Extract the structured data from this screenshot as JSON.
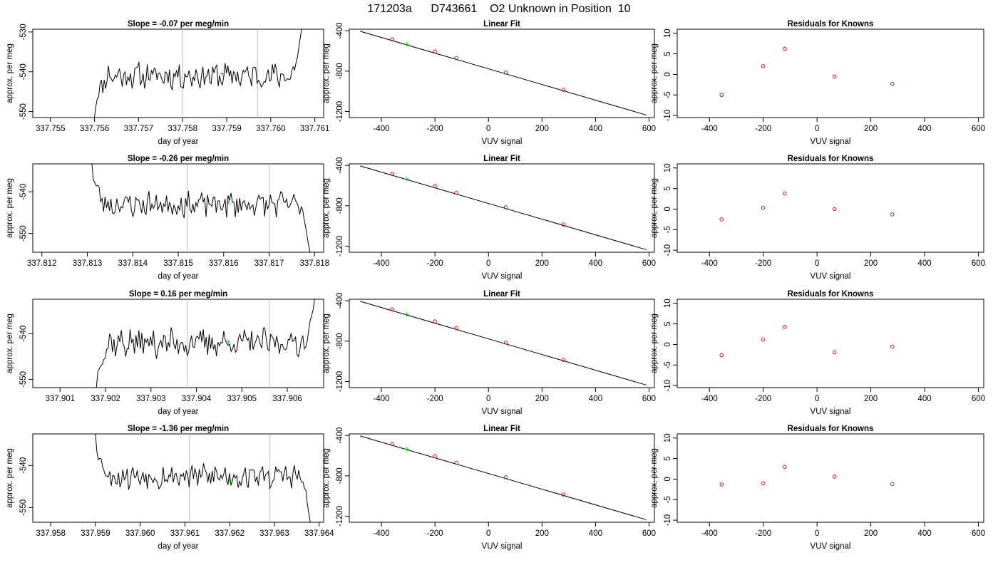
{
  "figure_title": "171203a      D743661    O2 Unknown in Position  10",
  "chart_data": [
    {
      "type": "line",
      "panel": "time-series",
      "row": 1,
      "title": "Slope =  -0.07  per meg/min",
      "xlabel": "day of year",
      "ylabel": "approx. per meg",
      "xlim": [
        337.7546,
        337.7612
      ],
      "ylim": [
        -551.5,
        -529.3
      ],
      "xticks": [
        "337.755",
        "337.756",
        "337.757",
        "337.758",
        "337.759",
        "337.760",
        "337.761"
      ],
      "yticks": [
        "-530",
        "-540",
        "-550"
      ],
      "vlines": [
        337.758,
        337.7597
      ],
      "highlight": {
        "x": 337.7589,
        "y": -540.5
      },
      "series": [
        {
          "x_start": 337.756,
          "x_end": 337.7607,
          "start": -551.5,
          "end": -529.3,
          "level": -541,
          "amp": 2.8,
          "seed": 11
        }
      ]
    },
    {
      "type": "scatter",
      "panel": "linear-fit",
      "row": 1,
      "title": "Linear Fit",
      "xlabel": "VUV signal",
      "ylabel": "approx. per meg",
      "xlim": [
        -520,
        620
      ],
      "ylim": [
        -1260,
        -385
      ],
      "xticks": [
        "-400",
        "-200",
        "0",
        "200",
        "400",
        "600"
      ],
      "yticks": [
        "-400",
        "-800",
        "-1200"
      ],
      "fit_line": {
        "x": [
          -480,
          590
        ],
        "y": [
          -405,
          -1235
        ]
      },
      "knowns": {
        "x": [
          -360,
          -200,
          -120,
          65,
          280
        ],
        "y": [
          -485,
          -605,
          -670,
          -815,
          -985
        ]
      },
      "unknown": {
        "x": -305,
        "y": -535
      }
    },
    {
      "type": "scatter",
      "panel": "residuals",
      "row": 1,
      "title": "Residuals for Knowns",
      "xlabel": "VUV signal",
      "ylabel": "approx. per meg",
      "xlim": [
        -520,
        620
      ],
      "ylim": [
        -10.5,
        11
      ],
      "xticks": [
        "-400",
        "-200",
        "0",
        "200",
        "400",
        "600"
      ],
      "yticks": [
        "10",
        "5",
        "0",
        "-5",
        "-10"
      ],
      "points": {
        "x": [
          -355,
          -200,
          -120,
          65,
          280
        ],
        "y": [
          -5.0,
          2.0,
          6.2,
          -0.5,
          -2.3
        ]
      }
    },
    {
      "type": "line",
      "panel": "time-series",
      "row": 2,
      "title": "Slope =  -0.26  per meg/min",
      "xlabel": "day of year",
      "ylabel": "approx. per meg",
      "xlim": [
        337.8118,
        337.8182
      ],
      "ylim": [
        -554.5,
        -533.3
      ],
      "xticks": [
        "337.812",
        "337.813",
        "337.814",
        "337.815",
        "337.816",
        "337.817",
        "337.818"
      ],
      "yticks": [
        "-540",
        "-550"
      ],
      "vlines": [
        337.8152,
        337.817
      ],
      "highlight": {
        "x": 337.8161,
        "y": -542.5
      },
      "series": [
        {
          "x_start": 337.8131,
          "x_end": 337.8179,
          "start": -533.3,
          "end": -554.5,
          "level": -543,
          "amp": 2.6,
          "seed": 23
        }
      ]
    },
    {
      "type": "scatter",
      "panel": "linear-fit",
      "row": 2,
      "title": "Linear Fit",
      "xlabel": "VUV signal",
      "ylabel": "approx. per meg",
      "xlim": [
        -520,
        620
      ],
      "ylim": [
        -1260,
        -385
      ],
      "xticks": [
        "-400",
        "-200",
        "0",
        "200",
        "400",
        "600"
      ],
      "yticks": [
        "-400",
        "-800",
        "-1200"
      ],
      "fit_line": {
        "x": [
          -480,
          590
        ],
        "y": [
          -405,
          -1235
        ]
      },
      "knowns": {
        "x": [
          -360,
          -200,
          -120,
          65,
          280
        ],
        "y": [
          -485,
          -605,
          -670,
          -815,
          -985
        ]
      },
      "unknown": {
        "x": -305,
        "y": -535
      }
    },
    {
      "type": "scatter",
      "panel": "residuals",
      "row": 2,
      "title": "Residuals for Knowns",
      "xlabel": "VUV signal",
      "ylabel": "approx. per meg",
      "xlim": [
        -520,
        620
      ],
      "ylim": [
        -10.5,
        11
      ],
      "xticks": [
        "-400",
        "-200",
        "0",
        "200",
        "400",
        "600"
      ],
      "yticks": [
        "10",
        "5",
        "0",
        "-5",
        "-10"
      ],
      "points": {
        "x": [
          -355,
          -200,
          -120,
          65,
          280
        ],
        "y": [
          -2.5,
          0.3,
          3.8,
          0.0,
          -1.3
        ]
      }
    },
    {
      "type": "line",
      "panel": "time-series",
      "row": 3,
      "title": "Slope =  0.16  per meg/min",
      "xlabel": "day of year",
      "ylabel": "approx. per meg",
      "xlim": [
        337.9004,
        337.9068
      ],
      "ylim": [
        -551.8,
        -532.5
      ],
      "xticks": [
        "337.901",
        "337.902",
        "337.903",
        "337.904",
        "337.905",
        "337.906"
      ],
      "yticks": [
        "-540",
        "-550"
      ],
      "vlines": [
        337.9038,
        337.9056
      ],
      "highlight": {
        "x": 337.9047,
        "y": -541.8
      },
      "series": [
        {
          "x_start": 337.9018,
          "x_end": 337.9066,
          "start": -551.8,
          "end": -532.5,
          "level": -542,
          "amp": 2.6,
          "seed": 37
        }
      ]
    },
    {
      "type": "scatter",
      "panel": "linear-fit",
      "row": 3,
      "title": "Linear Fit",
      "xlabel": "VUV signal",
      "ylabel": "approx. per meg",
      "xlim": [
        -520,
        620
      ],
      "ylim": [
        -1260,
        -385
      ],
      "xticks": [
        "-400",
        "-200",
        "0",
        "200",
        "400",
        "600"
      ],
      "yticks": [
        "-400",
        "-800",
        "-1200"
      ],
      "fit_line": {
        "x": [
          -480,
          590
        ],
        "y": [
          -405,
          -1235
        ]
      },
      "knowns": {
        "x": [
          -360,
          -200,
          -120,
          65,
          280
        ],
        "y": [
          -485,
          -605,
          -670,
          -815,
          -985
        ]
      },
      "unknown": {
        "x": -305,
        "y": -535
      }
    },
    {
      "type": "scatter",
      "panel": "residuals",
      "row": 3,
      "title": "Residuals for Knowns",
      "xlabel": "VUV signal",
      "ylabel": "approx. per meg",
      "xlim": [
        -520,
        620
      ],
      "ylim": [
        -10.5,
        11
      ],
      "xticks": [
        "-400",
        "-200",
        "0",
        "200",
        "400",
        "600"
      ],
      "yticks": [
        "10",
        "5",
        "0",
        "-5",
        "-10"
      ],
      "points": {
        "x": [
          -355,
          -200,
          -120,
          65,
          280
        ],
        "y": [
          -2.6,
          1.2,
          4.3,
          -1.9,
          -0.5
        ]
      }
    },
    {
      "type": "line",
      "panel": "time-series",
      "row": 4,
      "title": "Slope =  -1.36  per meg/min",
      "xlabel": "day of year",
      "ylabel": "approx. per meg",
      "xlim": [
        337.9576,
        337.9641
      ],
      "ylim": [
        -553.5,
        -532.5
      ],
      "xticks": [
        "337.958",
        "337.959",
        "337.960",
        "337.961",
        "337.962",
        "337.963",
        "337.964"
      ],
      "yticks": [
        "-540",
        "-550"
      ],
      "vlines": [
        337.9611,
        337.9629
      ],
      "highlight": {
        "x": 337.962,
        "y": -543.5
      },
      "series": [
        {
          "x_start": 337.959,
          "x_end": 337.9638,
          "start": -532.5,
          "end": -553.5,
          "level": -542.5,
          "amp": 2.6,
          "seed": 53
        }
      ]
    },
    {
      "type": "scatter",
      "panel": "linear-fit",
      "row": 4,
      "title": "Linear Fit",
      "xlabel": "VUV signal",
      "ylabel": "approx. per meg",
      "xlim": [
        -520,
        620
      ],
      "ylim": [
        -1260,
        -385
      ],
      "xticks": [
        "-400",
        "-200",
        "0",
        "200",
        "400",
        "600"
      ],
      "yticks": [
        "-400",
        "-800",
        "-1200"
      ],
      "fit_line": {
        "x": [
          -480,
          590
        ],
        "y": [
          -405,
          -1235
        ]
      },
      "knowns": {
        "x": [
          -360,
          -200,
          -120,
          65,
          280
        ],
        "y": [
          -485,
          -605,
          -670,
          -815,
          -985
        ]
      },
      "unknown": {
        "x": -305,
        "y": -535
      }
    },
    {
      "type": "scatter",
      "panel": "residuals",
      "row": 4,
      "title": "Residuals for Knowns",
      "xlabel": "VUV signal",
      "ylabel": "approx. per meg",
      "xlim": [
        -520,
        620
      ],
      "ylim": [
        -10.5,
        11
      ],
      "xticks": [
        "-400",
        "-200",
        "0",
        "200",
        "400",
        "600"
      ],
      "yticks": [
        "10",
        "5",
        "0",
        "-5",
        "-10"
      ],
      "points": {
        "x": [
          -355,
          -200,
          -120,
          65,
          280
        ],
        "y": [
          -1.3,
          -1.0,
          3.0,
          0.6,
          -1.2
        ]
      }
    }
  ],
  "colors": {
    "axis": "#000000",
    "series": "#000000",
    "vline": "#bebebe",
    "known_points": "#cc0000",
    "unknown_point": "#00cc00",
    "fit_line": "#000000"
  }
}
